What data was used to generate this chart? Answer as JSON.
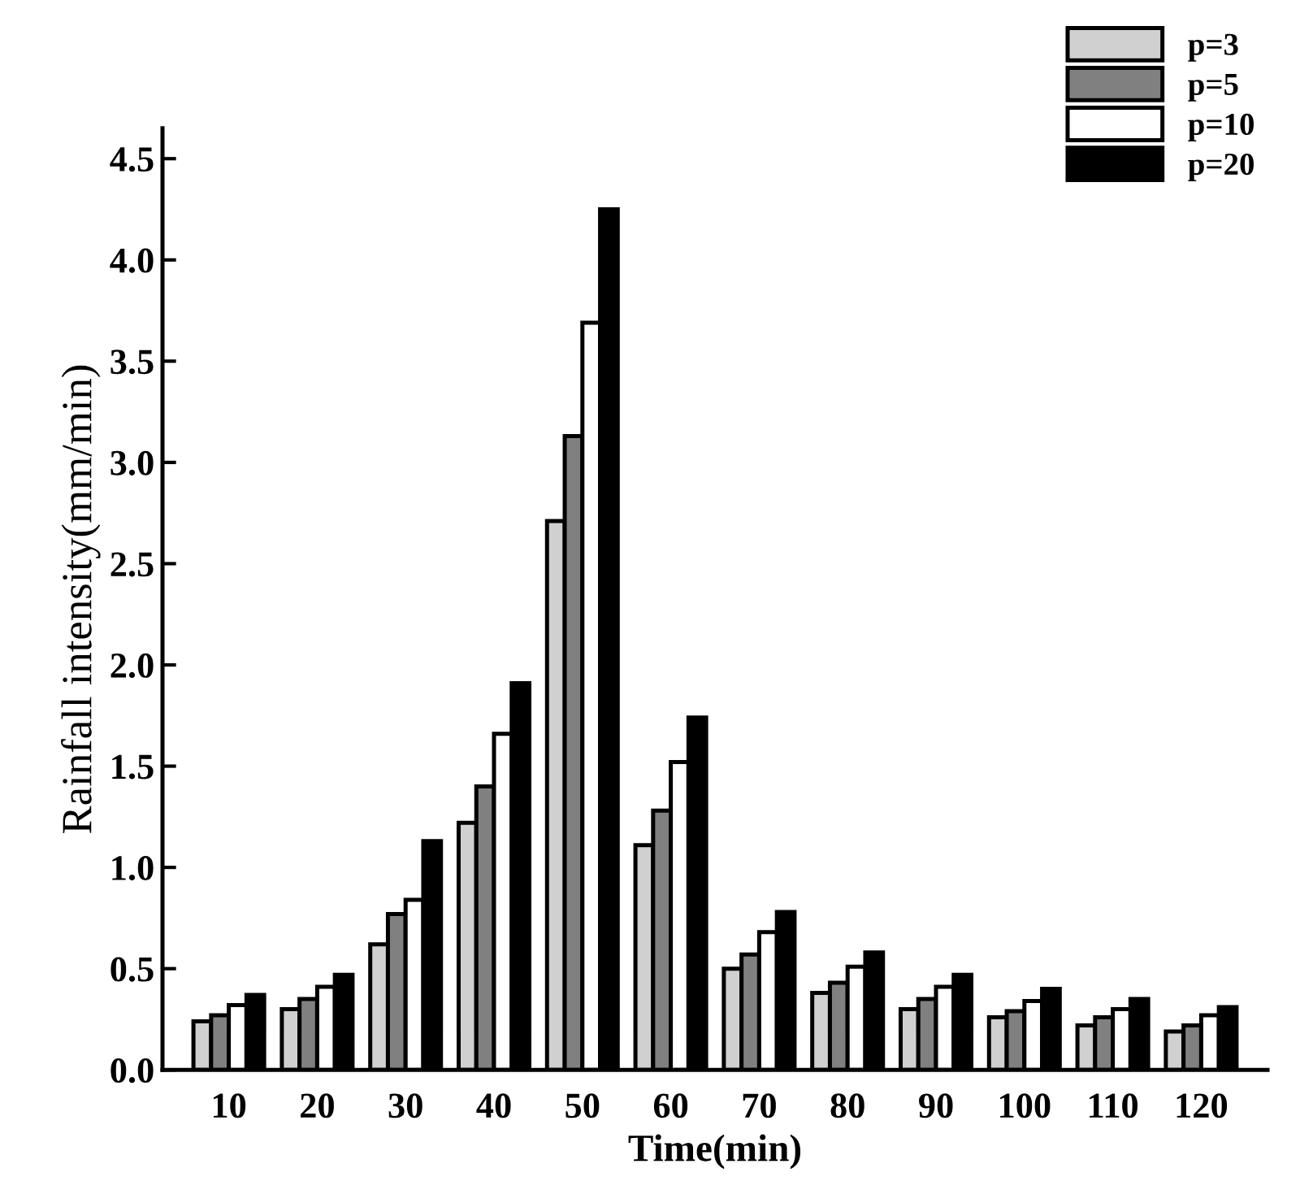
{
  "chart_data": {
    "type": "bar",
    "xlabel": "Time(min)",
    "ylabel": "Rainfall intensity(mm/min)",
    "categories": [
      "10",
      "20",
      "30",
      "40",
      "50",
      "60",
      "70",
      "80",
      "90",
      "100",
      "110",
      "120"
    ],
    "series": [
      {
        "name": "p=3",
        "color": "#d0d0d0",
        "values": [
          0.24,
          0.3,
          0.62,
          1.22,
          2.71,
          1.11,
          0.5,
          0.38,
          0.3,
          0.26,
          0.22,
          0.19
        ]
      },
      {
        "name": "p=5",
        "color": "#808080",
        "values": [
          0.27,
          0.35,
          0.77,
          1.4,
          3.13,
          1.28,
          0.57,
          0.43,
          0.35,
          0.29,
          0.26,
          0.22
        ]
      },
      {
        "name": "p=10",
        "color": "#ffffff",
        "values": [
          0.32,
          0.41,
          0.84,
          1.66,
          3.69,
          1.52,
          0.68,
          0.51,
          0.41,
          0.34,
          0.3,
          0.27
        ]
      },
      {
        "name": "p=20",
        "color": "#000000",
        "values": [
          0.37,
          0.47,
          1.13,
          1.91,
          4.25,
          1.74,
          0.78,
          0.58,
          0.47,
          0.4,
          0.35,
          0.31
        ]
      }
    ],
    "ylim": [
      0,
      4.65
    ],
    "yticks": [
      {
        "value": 0,
        "label": "0.0"
      },
      0.5,
      {
        "value": 1,
        "label": "1.0"
      },
      1.5,
      {
        "value": 2,
        "label": "2.0"
      },
      2.5,
      {
        "value": 3,
        "label": "3.0"
      },
      3.5,
      {
        "value": 4,
        "label": "4.0"
      },
      4.5
    ],
    "grid": false,
    "legend": "top right"
  }
}
